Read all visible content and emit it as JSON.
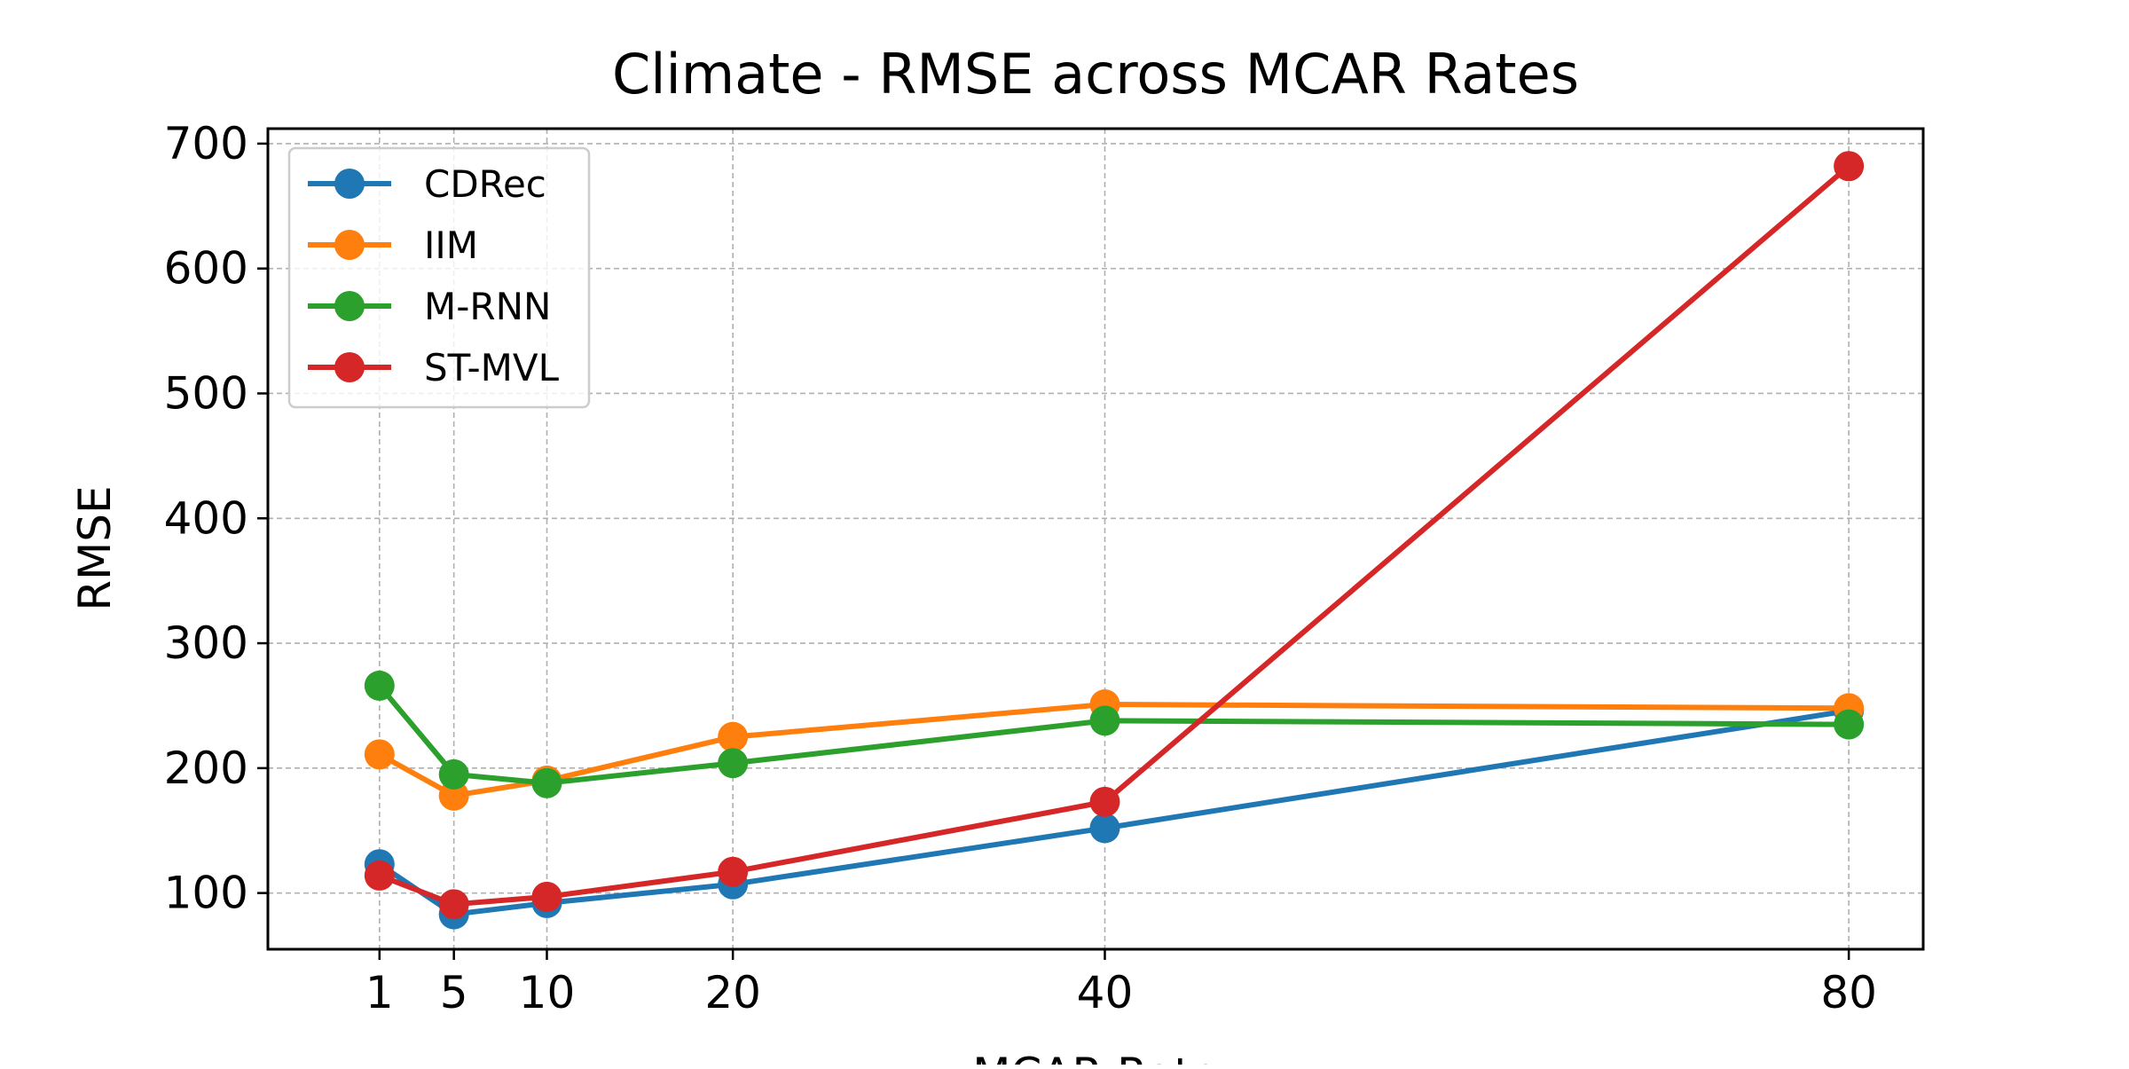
{
  "chart_data": {
    "type": "line",
    "title": "Climate - RMSE across MCAR Rates",
    "xlabel": "MCAR Rate",
    "ylabel": "RMSE",
    "x": [
      1,
      5,
      10,
      20,
      40,
      80
    ],
    "x_tick_labels": [
      "1",
      "5",
      "10",
      "20",
      "40",
      "80"
    ],
    "y_ticks": [
      100,
      200,
      300,
      400,
      500,
      600,
      700
    ],
    "y_tick_labels": [
      "100",
      "200",
      "300",
      "400",
      "500",
      "600",
      "700"
    ],
    "xlim": [
      -5,
      84
    ],
    "ylim": [
      55,
      712
    ],
    "grid": true,
    "legend_position": "upper-left",
    "series": [
      {
        "name": "CDRec",
        "color": "#1f77b4",
        "values": [
          123,
          83,
          92,
          107,
          152,
          246
        ]
      },
      {
        "name": "IIM",
        "color": "#ff7f0e",
        "values": [
          211,
          178,
          190,
          225,
          251,
          248
        ]
      },
      {
        "name": "M-RNN",
        "color": "#2ca02c",
        "values": [
          266,
          195,
          188,
          204,
          238,
          235
        ]
      },
      {
        "name": "ST-MVL",
        "color": "#d62728",
        "values": [
          114,
          91,
          97,
          117,
          173,
          682
        ]
      }
    ]
  }
}
